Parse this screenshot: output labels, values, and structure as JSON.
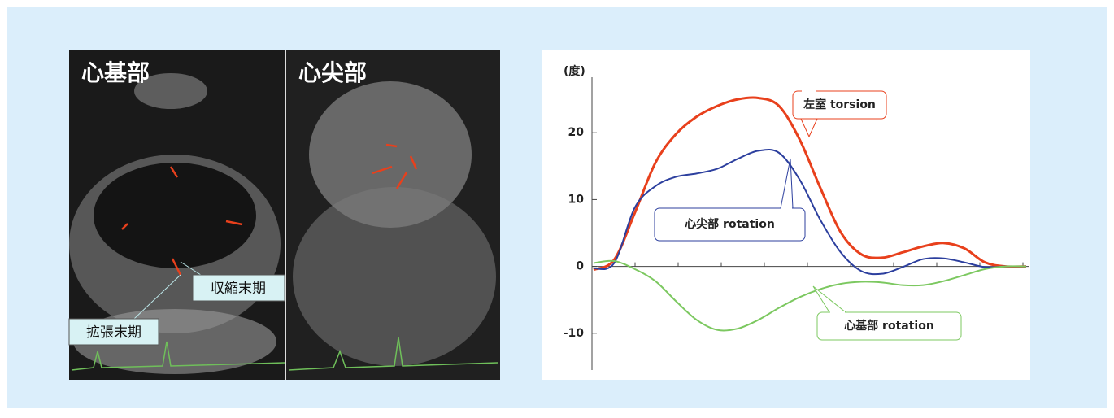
{
  "echo_labels": {
    "base": "心基部",
    "apex": "心尖部",
    "systole": "収縮末期",
    "diastole": "拡張末期"
  },
  "chart_data": {
    "type": "line",
    "y_label": "(度)",
    "categories": [
      null,
      null,
      null,
      null,
      null,
      null,
      null,
      null,
      null,
      null,
      null,
      null,
      null,
      null,
      null,
      null,
      null,
      null,
      null,
      null,
      null,
      null
    ],
    "series": [
      {
        "name": "左室 torsion",
        "color": "#e8401c",
        "values": [
          -0.5,
          1,
          8,
          15.5,
          19.8,
          22.4,
          24,
          25,
          25.2,
          24,
          19,
          11.8,
          5.1,
          1.8,
          1.3,
          2.1,
          3,
          3.5,
          2.7,
          0.6,
          0,
          0
        ]
      },
      {
        "name": "心尖部 rotation",
        "color": "#2c3f9e",
        "values": [
          -0.3,
          0.5,
          8.8,
          12,
          13.4,
          13.9,
          14.6,
          16.1,
          17.3,
          17,
          13,
          7,
          2.1,
          -0.7,
          -1.1,
          -0.1,
          1.1,
          1.2,
          0.6,
          -0.1,
          0,
          0
        ]
      },
      {
        "name": "心基部 rotation",
        "color": "#7cc860",
        "values": [
          0.5,
          0.8,
          -0.4,
          -2.2,
          -5.2,
          -8,
          -9.5,
          -9.3,
          -8,
          -6.2,
          -4.6,
          -3.4,
          -2.6,
          -2.3,
          -2.4,
          -2.8,
          -2.8,
          -2.2,
          -1.3,
          -0.4,
          0,
          0
        ]
      }
    ],
    "ylim": [
      -15.5,
      28.3
    ],
    "yticks": [
      -10,
      0,
      10,
      20
    ],
    "grid": false
  }
}
